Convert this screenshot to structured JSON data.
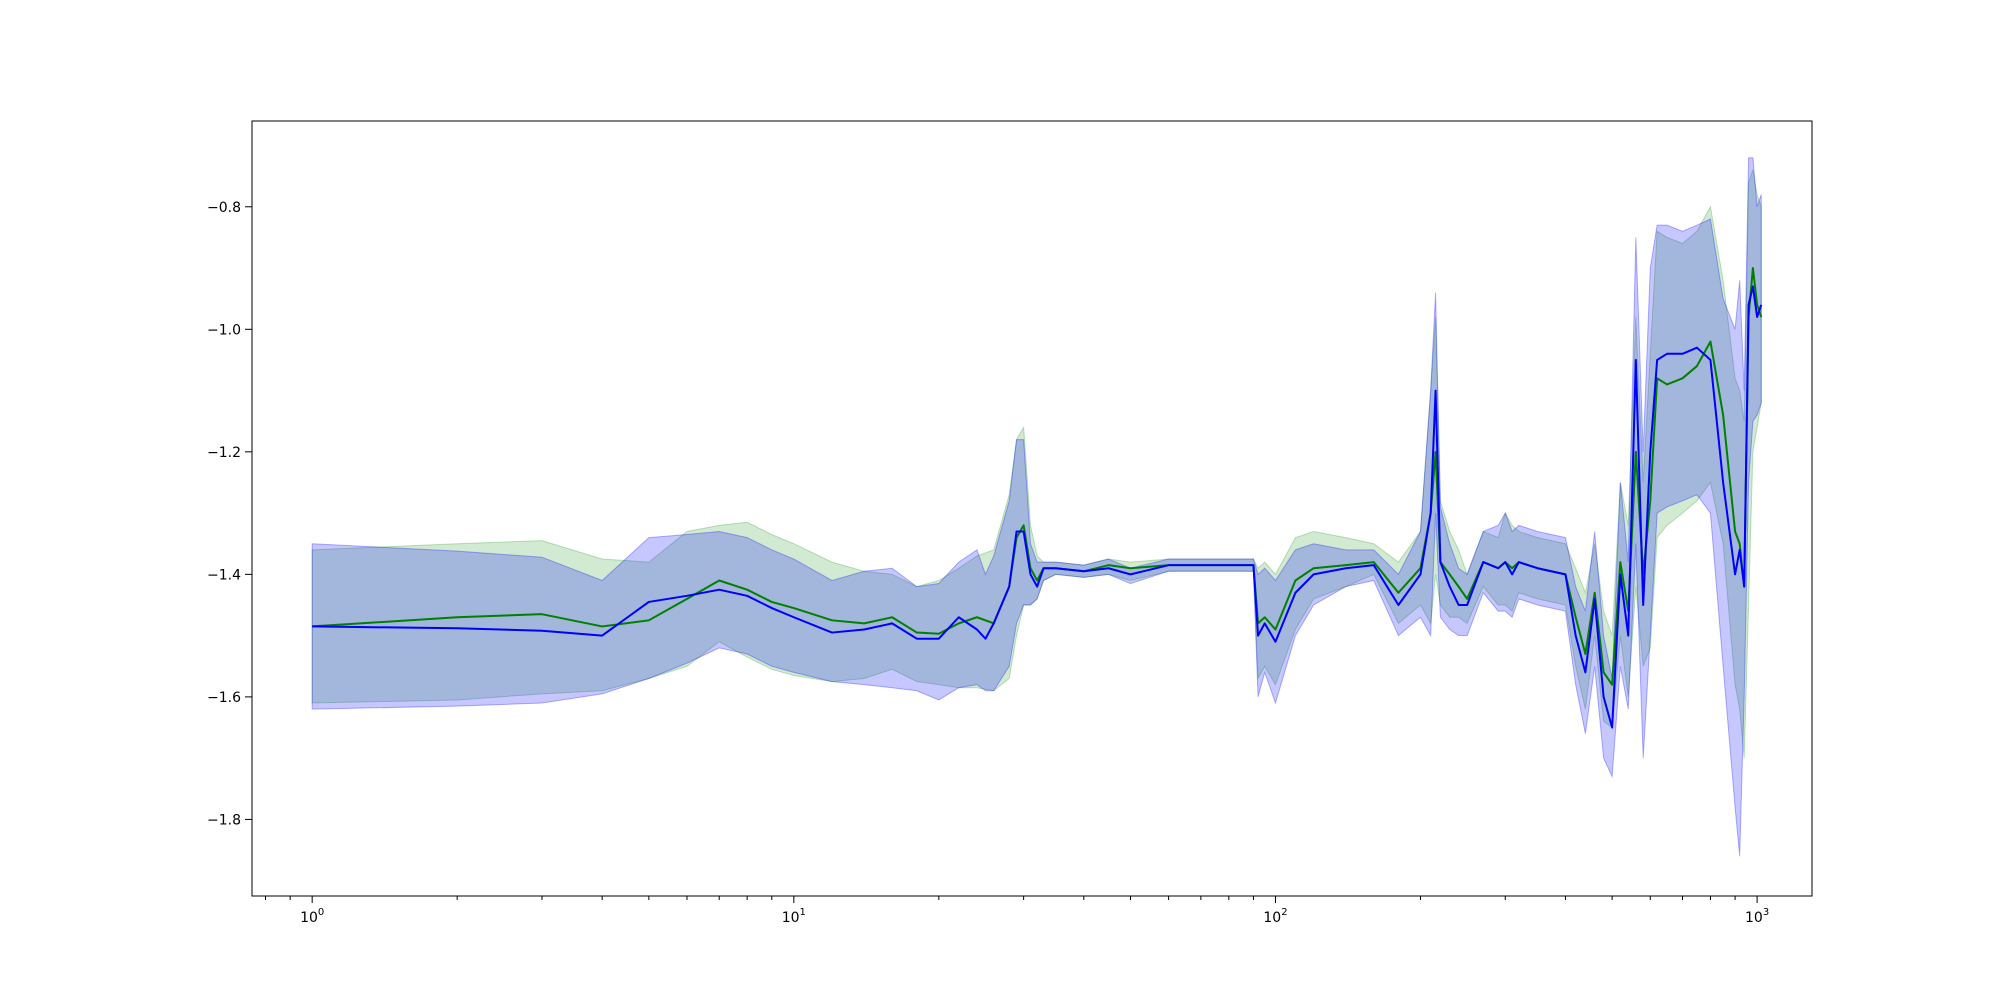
{
  "chart_data": {
    "type": "line",
    "title": "",
    "xlabel": "",
    "ylabel": "",
    "xscale": "log",
    "xlim": [
      0.75,
      1300
    ],
    "ylim": [
      -1.925,
      -0.66
    ],
    "grid": false,
    "legend": "none",
    "x_ticks": [
      {
        "value": 1,
        "base": "10",
        "exp": "0"
      },
      {
        "value": 10,
        "base": "10",
        "exp": "1"
      },
      {
        "value": 100,
        "base": "10",
        "exp": "2"
      },
      {
        "value": 1000,
        "base": "10",
        "exp": "3"
      }
    ],
    "y_ticks": [
      {
        "value": -0.8,
        "label": "−0.8"
      },
      {
        "value": -1.0,
        "label": "−1.0"
      },
      {
        "value": -1.2,
        "label": "−1.2"
      },
      {
        "value": -1.4,
        "label": "−1.4"
      },
      {
        "value": -1.6,
        "label": "−1.6"
      },
      {
        "value": -1.8,
        "label": "−1.8"
      }
    ],
    "series": [
      {
        "color": "#008000",
        "band_color": "#2ca02c",
        "x": [
          1,
          2,
          3,
          4,
          5,
          6,
          7,
          8,
          9,
          10,
          12,
          14,
          16,
          18,
          20,
          22,
          24,
          26,
          28,
          29,
          30,
          31,
          32,
          33,
          35,
          40,
          45,
          50,
          60,
          70,
          80,
          90,
          92,
          95,
          100,
          110,
          120,
          140,
          160,
          180,
          200,
          210,
          215,
          220,
          230,
          240,
          250,
          270,
          290,
          300,
          310,
          320,
          350,
          400,
          420,
          440,
          460,
          480,
          500,
          520,
          540,
          560,
          580,
          600,
          620,
          650,
          700,
          750,
          800,
          850,
          900,
          920,
          940,
          960,
          980,
          1000,
          1020
        ],
        "y": [
          -1.485,
          -1.47,
          -1.465,
          -1.485,
          -1.475,
          -1.44,
          -1.41,
          -1.425,
          -1.445,
          -1.455,
          -1.475,
          -1.48,
          -1.47,
          -1.495,
          -1.497,
          -1.48,
          -1.47,
          -1.48,
          -1.42,
          -1.34,
          -1.32,
          -1.39,
          -1.41,
          -1.39,
          -1.39,
          -1.395,
          -1.385,
          -1.39,
          -1.385,
          -1.385,
          -1.385,
          -1.385,
          -1.48,
          -1.47,
          -1.49,
          -1.41,
          -1.39,
          -1.385,
          -1.38,
          -1.43,
          -1.39,
          -1.3,
          -1.2,
          -1.38,
          -1.4,
          -1.42,
          -1.44,
          -1.38,
          -1.39,
          -1.38,
          -1.39,
          -1.38,
          -1.39,
          -1.4,
          -1.47,
          -1.53,
          -1.43,
          -1.56,
          -1.58,
          -1.38,
          -1.46,
          -1.2,
          -1.4,
          -1.28,
          -1.08,
          -1.09,
          -1.08,
          -1.06,
          -1.02,
          -1.14,
          -1.33,
          -1.35,
          -1.42,
          -0.98,
          -0.9,
          -0.96,
          -0.98
        ],
        "lower": [
          -1.61,
          -1.605,
          -1.595,
          -1.59,
          -1.57,
          -1.55,
          -1.51,
          -1.535,
          -1.555,
          -1.565,
          -1.575,
          -1.57,
          -1.555,
          -1.575,
          -1.58,
          -1.585,
          -1.585,
          -1.59,
          -1.57,
          -1.5,
          -1.45,
          -1.45,
          -1.44,
          -1.41,
          -1.4,
          -1.405,
          -1.4,
          -1.41,
          -1.395,
          -1.395,
          -1.395,
          -1.395,
          -1.57,
          -1.55,
          -1.58,
          -1.49,
          -1.44,
          -1.42,
          -1.4,
          -1.48,
          -1.45,
          -1.48,
          -1.4,
          -1.45,
          -1.47,
          -1.47,
          -1.48,
          -1.42,
          -1.45,
          -1.45,
          -1.46,
          -1.43,
          -1.44,
          -1.45,
          -1.55,
          -1.62,
          -1.5,
          -1.64,
          -1.65,
          -1.5,
          -1.6,
          -1.42,
          -1.55,
          -1.52,
          -1.34,
          -1.32,
          -1.3,
          -1.28,
          -1.25,
          -1.35,
          -1.58,
          -1.62,
          -1.7,
          -1.45,
          -1.2,
          -1.16,
          -1.12
        ],
        "upper": [
          -1.36,
          -1.35,
          -1.345,
          -1.375,
          -1.38,
          -1.33,
          -1.32,
          -1.315,
          -1.335,
          -1.35,
          -1.38,
          -1.395,
          -1.4,
          -1.42,
          -1.41,
          -1.39,
          -1.37,
          -1.36,
          -1.27,
          -1.18,
          -1.16,
          -1.32,
          -1.37,
          -1.38,
          -1.38,
          -1.385,
          -1.375,
          -1.38,
          -1.375,
          -1.375,
          -1.375,
          -1.375,
          -1.39,
          -1.38,
          -1.4,
          -1.34,
          -1.33,
          -1.34,
          -1.35,
          -1.38,
          -1.33,
          -1.1,
          -0.98,
          -1.28,
          -1.33,
          -1.36,
          -1.4,
          -1.33,
          -1.34,
          -1.3,
          -1.32,
          -1.33,
          -1.34,
          -1.35,
          -1.39,
          -1.43,
          -1.35,
          -1.46,
          -1.5,
          -1.25,
          -1.32,
          -0.98,
          -1.25,
          -1.04,
          -0.84,
          -0.85,
          -0.86,
          -0.84,
          -0.8,
          -0.92,
          -1.08,
          -1.1,
          -1.15,
          -0.76,
          -0.74,
          -0.78,
          -0.8
        ]
      },
      {
        "color": "#0000ff",
        "band_color": "#0000ff",
        "x": [
          1,
          2,
          3,
          4,
          5,
          6,
          7,
          8,
          9,
          10,
          12,
          14,
          16,
          18,
          20,
          22,
          24,
          25,
          26,
          28,
          29,
          30,
          31,
          32,
          33,
          35,
          40,
          45,
          50,
          60,
          70,
          80,
          90,
          92,
          95,
          100,
          110,
          120,
          140,
          160,
          180,
          200,
          210,
          215,
          220,
          230,
          240,
          250,
          270,
          290,
          300,
          310,
          320,
          350,
          400,
          420,
          440,
          460,
          480,
          500,
          520,
          540,
          560,
          580,
          600,
          620,
          650,
          700,
          750,
          800,
          850,
          900,
          920,
          940,
          960,
          980,
          1000,
          1020
        ],
        "y": [
          -1.485,
          -1.488,
          -1.492,
          -1.5,
          -1.445,
          -1.435,
          -1.425,
          -1.435,
          -1.455,
          -1.47,
          -1.495,
          -1.49,
          -1.48,
          -1.505,
          -1.505,
          -1.47,
          -1.49,
          -1.505,
          -1.48,
          -1.42,
          -1.33,
          -1.33,
          -1.4,
          -1.42,
          -1.39,
          -1.39,
          -1.395,
          -1.39,
          -1.4,
          -1.385,
          -1.385,
          -1.385,
          -1.385,
          -1.5,
          -1.48,
          -1.51,
          -1.43,
          -1.4,
          -1.39,
          -1.385,
          -1.45,
          -1.4,
          -1.3,
          -1.1,
          -1.38,
          -1.42,
          -1.45,
          -1.45,
          -1.38,
          -1.39,
          -1.38,
          -1.4,
          -1.38,
          -1.39,
          -1.4,
          -1.5,
          -1.56,
          -1.44,
          -1.6,
          -1.65,
          -1.4,
          -1.5,
          -1.05,
          -1.45,
          -1.2,
          -1.05,
          -1.04,
          -1.04,
          -1.03,
          -1.05,
          -1.25,
          -1.4,
          -1.36,
          -1.42,
          -0.96,
          -0.93,
          -0.98,
          -0.96
        ],
        "lower": [
          -1.62,
          -1.615,
          -1.61,
          -1.595,
          -1.57,
          -1.545,
          -1.52,
          -1.53,
          -1.55,
          -1.56,
          -1.575,
          -1.58,
          -1.585,
          -1.59,
          -1.605,
          -1.585,
          -1.58,
          -1.59,
          -1.59,
          -1.55,
          -1.48,
          -1.45,
          -1.45,
          -1.44,
          -1.41,
          -1.4,
          -1.405,
          -1.4,
          -1.415,
          -1.395,
          -1.395,
          -1.395,
          -1.395,
          -1.6,
          -1.56,
          -1.61,
          -1.5,
          -1.45,
          -1.42,
          -1.41,
          -1.5,
          -1.47,
          -1.5,
          -1.3,
          -1.47,
          -1.49,
          -1.5,
          -1.5,
          -1.43,
          -1.46,
          -1.46,
          -1.47,
          -1.44,
          -1.45,
          -1.46,
          -1.58,
          -1.66,
          -1.55,
          -1.7,
          -1.73,
          -1.55,
          -1.62,
          -1.35,
          -1.7,
          -1.5,
          -1.3,
          -1.29,
          -1.28,
          -1.27,
          -1.3,
          -1.55,
          -1.78,
          -1.86,
          -1.6,
          -1.25,
          -1.15,
          -1.14,
          -1.12
        ],
        "upper": [
          -1.35,
          -1.362,
          -1.372,
          -1.41,
          -1.34,
          -1.335,
          -1.33,
          -1.34,
          -1.36,
          -1.375,
          -1.41,
          -1.395,
          -1.39,
          -1.42,
          -1.415,
          -1.38,
          -1.36,
          -1.4,
          -1.37,
          -1.28,
          -1.18,
          -1.18,
          -1.35,
          -1.38,
          -1.38,
          -1.38,
          -1.385,
          -1.375,
          -1.39,
          -1.375,
          -1.375,
          -1.375,
          -1.375,
          -1.4,
          -1.39,
          -1.41,
          -1.36,
          -1.35,
          -1.36,
          -1.36,
          -1.4,
          -1.33,
          -1.1,
          -0.94,
          -1.29,
          -1.35,
          -1.39,
          -1.4,
          -1.33,
          -1.32,
          -1.3,
          -1.33,
          -1.32,
          -1.33,
          -1.34,
          -1.42,
          -1.46,
          -1.33,
          -1.5,
          -1.57,
          -1.25,
          -1.38,
          -0.85,
          -1.2,
          -0.9,
          -0.83,
          -0.83,
          -0.84,
          -0.83,
          -0.82,
          -0.95,
          -1.0,
          -0.92,
          -1.1,
          -0.72,
          -0.72,
          -0.8,
          -0.78
        ]
      }
    ]
  }
}
